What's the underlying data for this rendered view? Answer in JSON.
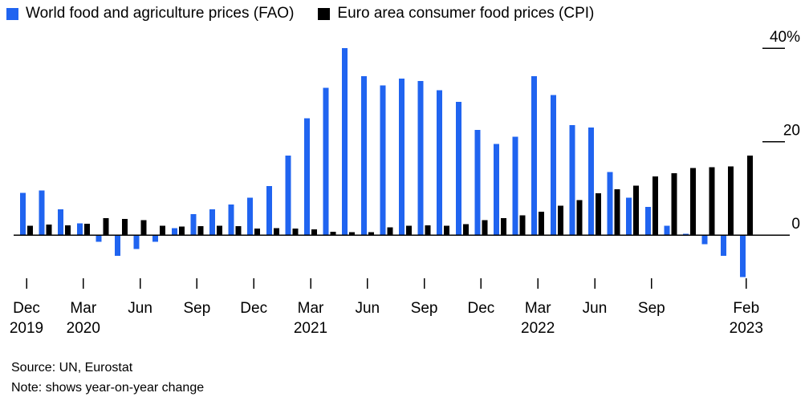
{
  "legend": {
    "items": [
      {
        "label": "World food and agriculture prices (FAO)",
        "color": "#2064f0"
      },
      {
        "label": "Euro area consumer food prices (CPI)",
        "color": "#000000"
      }
    ]
  },
  "footer": {
    "source": "Source: UN, Eurostat",
    "note": "Note: shows year-on-year change"
  },
  "chart_data": {
    "type": "bar",
    "title": "",
    "unit": "%",
    "grid": false,
    "legend_position": "top",
    "ylim": [
      -10,
      42
    ],
    "categories": [
      "Dec 2019",
      "Jan 2020",
      "Feb 2020",
      "Mar 2020",
      "Apr 2020",
      "May 2020",
      "Jun 2020",
      "Jul 2020",
      "Aug 2020",
      "Sep 2020",
      "Oct 2020",
      "Nov 2020",
      "Dec 2020",
      "Jan 2021",
      "Feb 2021",
      "Mar 2021",
      "Apr 2021",
      "May 2021",
      "Jun 2021",
      "Jul 2021",
      "Aug 2021",
      "Sep 2021",
      "Oct 2021",
      "Nov 2021",
      "Dec 2021",
      "Jan 2022",
      "Feb 2022",
      "Mar 2022",
      "Apr 2022",
      "May 2022",
      "Jun 2022",
      "Jul 2022",
      "Aug 2022",
      "Sep 2022",
      "Oct 2022",
      "Nov 2022",
      "Dec 2022",
      "Jan 2023",
      "Feb 2023"
    ],
    "series": [
      {
        "name": "World food and agriculture prices (FAO)",
        "color": "#2064f0",
        "values": [
          9,
          9.5,
          5.5,
          2.5,
          -1.5,
          -4.5,
          -3,
          -1.5,
          1.5,
          4.5,
          5.5,
          6.5,
          8,
          10.5,
          17,
          25,
          31.5,
          40,
          34,
          32,
          33.5,
          33,
          31,
          28.5,
          22.5,
          19.5,
          21,
          34,
          30,
          23.5,
          23,
          13.5,
          8,
          6,
          2,
          0.3,
          -2,
          -4.5,
          -9
        ]
      },
      {
        "name": "Euro area consumer food prices (CPI)",
        "color": "#000000",
        "values": [
          2,
          2.2,
          2.1,
          2.4,
          3.6,
          3.4,
          3.2,
          2,
          1.8,
          1.9,
          2,
          1.9,
          1.4,
          1.5,
          1.4,
          1.2,
          0.7,
          0.6,
          0.6,
          1.6,
          2,
          2.1,
          2,
          2.3,
          3.2,
          3.6,
          4.2,
          5,
          6.3,
          7.5,
          8.9,
          9.8,
          10.6,
          12.5,
          13.2,
          14.3,
          14.5,
          14.7,
          17
        ]
      }
    ],
    "y_ticks": [
      {
        "label": "40%",
        "value": 40
      },
      {
        "label": "20",
        "value": 20
      },
      {
        "label": "0",
        "value": 0
      }
    ],
    "x_ticks": [
      {
        "index": 0,
        "month": "Dec",
        "year": "2019"
      },
      {
        "index": 3,
        "month": "Mar",
        "year": "2020"
      },
      {
        "index": 6,
        "month": "Jun",
        "year": ""
      },
      {
        "index": 9,
        "month": "Sep",
        "year": ""
      },
      {
        "index": 12,
        "month": "Dec",
        "year": ""
      },
      {
        "index": 15,
        "month": "Mar",
        "year": "2021"
      },
      {
        "index": 18,
        "month": "Jun",
        "year": ""
      },
      {
        "index": 21,
        "month": "Sep",
        "year": ""
      },
      {
        "index": 24,
        "month": "Dec",
        "year": ""
      },
      {
        "index": 27,
        "month": "Mar",
        "year": "2022"
      },
      {
        "index": 30,
        "month": "Jun",
        "year": ""
      },
      {
        "index": 33,
        "month": "Sep",
        "year": ""
      },
      {
        "index": 38,
        "month": "Feb",
        "year": "2023"
      }
    ]
  }
}
